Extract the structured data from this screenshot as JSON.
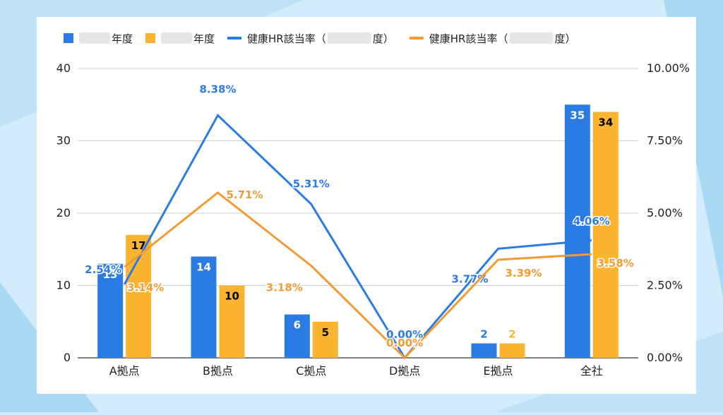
{
  "chart_data": {
    "type": "bar",
    "categories": [
      "A拠点",
      "B拠点",
      "C拠点",
      "D拠点",
      "E拠点",
      "全社"
    ],
    "y_left": {
      "ticks": [
        "0",
        "10",
        "20",
        "30",
        "40"
      ],
      "range": [
        0,
        40
      ]
    },
    "y_right": {
      "ticks": [
        "0.00%",
        "2.50%",
        "5.00%",
        "7.50%",
        "10.00%"
      ],
      "range": [
        0,
        10
      ]
    },
    "grid": true,
    "legend_position": "top",
    "series": [
      {
        "name": "年度",
        "kind": "bar",
        "axis": "left",
        "color": "#2b7be5",
        "label_color": "#ffffff",
        "values": [
          13,
          14,
          6,
          0,
          2,
          35
        ],
        "labels": [
          "13",
          "14",
          "6",
          "",
          "2",
          "35"
        ]
      },
      {
        "name": "年度",
        "kind": "bar",
        "axis": "left",
        "color": "#fbb430",
        "label_color": "#000000",
        "values": [
          17,
          10,
          5,
          0,
          2,
          34
        ],
        "labels": [
          "17",
          "10",
          "5",
          "",
          "2",
          "34"
        ]
      },
      {
        "name": "健康HR該当率（",
        "name_suffix": "度）",
        "kind": "line",
        "axis": "right",
        "color": "#2b7be5",
        "values": [
          2.54,
          8.38,
          5.31,
          0.0,
          3.77,
          4.06
        ],
        "labels": [
          "2.54%",
          "8.38%",
          "5.31%",
          "0.00%",
          "3.77%",
          "4.06%"
        ]
      },
      {
        "name": "健康HR該当率（",
        "name_suffix": "度）",
        "kind": "line",
        "axis": "right",
        "color": "#f59a32",
        "values": [
          3.14,
          5.71,
          3.18,
          0.0,
          3.39,
          3.58
        ],
        "labels": [
          "3.14%",
          "5.71%",
          "3.18%",
          "0.00%",
          "3.39%",
          "3.58%"
        ]
      }
    ]
  }
}
